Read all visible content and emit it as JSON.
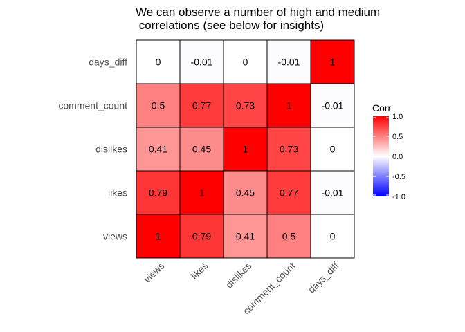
{
  "chart_data": {
    "type": "heatmap",
    "title_lines": [
      "We can observe a number of high and medium",
      " correlations (see below for insights)"
    ],
    "x_categories": [
      "views",
      "likes",
      "dislikes",
      "comment_count",
      "days_diff"
    ],
    "y_categories": [
      "views",
      "likes",
      "dislikes",
      "comment_count",
      "days_diff"
    ],
    "y_order_top_to_bottom": [
      "days_diff",
      "comment_count",
      "dislikes",
      "likes",
      "views"
    ],
    "values": [
      [
        1,
        0.79,
        0.41,
        0.5,
        0
      ],
      [
        0.79,
        1,
        0.45,
        0.77,
        -0.01
      ],
      [
        0.41,
        0.45,
        1,
        0.73,
        0
      ],
      [
        0.5,
        0.77,
        0.73,
        1,
        -0.01
      ],
      [
        0,
        -0.01,
        0,
        -0.01,
        1
      ]
    ],
    "legend": {
      "title": "Corr",
      "range": [
        -1,
        1
      ],
      "ticks": [
        1,
        0.5,
        0,
        -0.5,
        -1
      ],
      "tick_labels": [
        "1.0",
        "0.5",
        "0.0",
        "-0.5",
        "-1.0"
      ],
      "colors": {
        "low": "#0000ff",
        "mid": "#ffffff",
        "high": "#ff0000"
      },
      "placement": "right"
    },
    "grid": false
  }
}
